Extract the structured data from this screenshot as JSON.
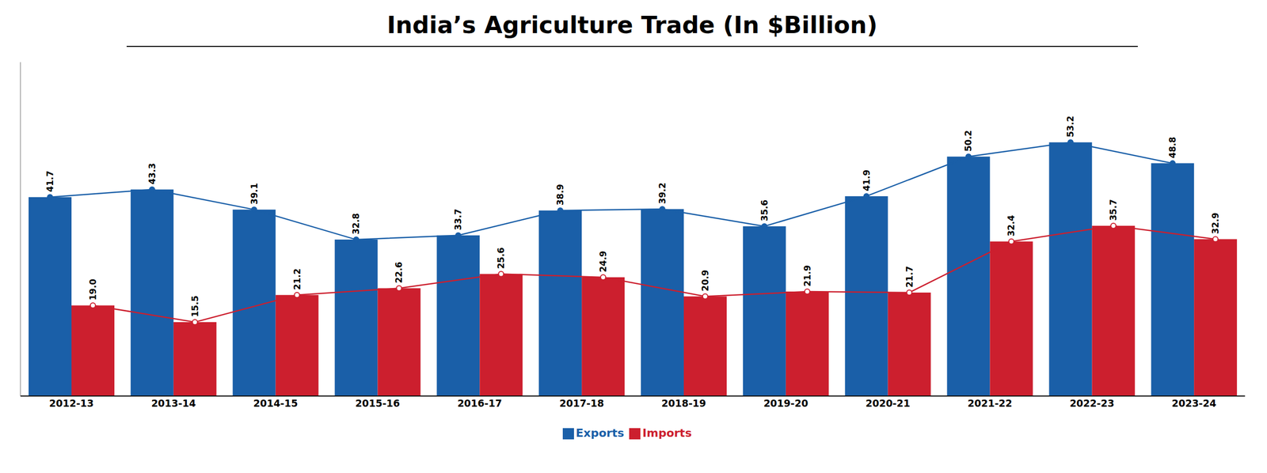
{
  "chart_data": {
    "type": "bar",
    "title": "India’s Agriculture Trade (In $Billion)",
    "categories": [
      "2012-13",
      "2013-14",
      "2014-15",
      "2015-16",
      "2016-17",
      "2017-18",
      "2018-19",
      "2019-20",
      "2020-21",
      "2021-22",
      "2022-23",
      "2023-24"
    ],
    "series": [
      {
        "name": "Exports",
        "color": "#1a5fa8",
        "marker": "o",
        "line_style": "solid",
        "values": [
          41.7,
          43.3,
          39.1,
          32.8,
          33.7,
          38.9,
          39.2,
          35.6,
          41.9,
          50.2,
          53.2,
          48.8
        ]
      },
      {
        "name": "Imports",
        "color": "#cc1f2e",
        "marker": "o",
        "line_style": "solid",
        "values": [
          19.0,
          15.5,
          21.2,
          22.6,
          25.6,
          24.9,
          20.9,
          21.9,
          21.7,
          32.4,
          35.7,
          32.9
        ],
        "value_labels": [
          "19.0",
          "15.5",
          "21.2",
          "22.6",
          "25.6",
          "24.9",
          "20.9",
          "21.9",
          "21.7",
          "32.4",
          "35.7",
          "32.9"
        ]
      }
    ],
    "ylim": [
      0,
      70
    ],
    "tick_labels": "x",
    "data_labels": true,
    "legend": "bottom"
  }
}
